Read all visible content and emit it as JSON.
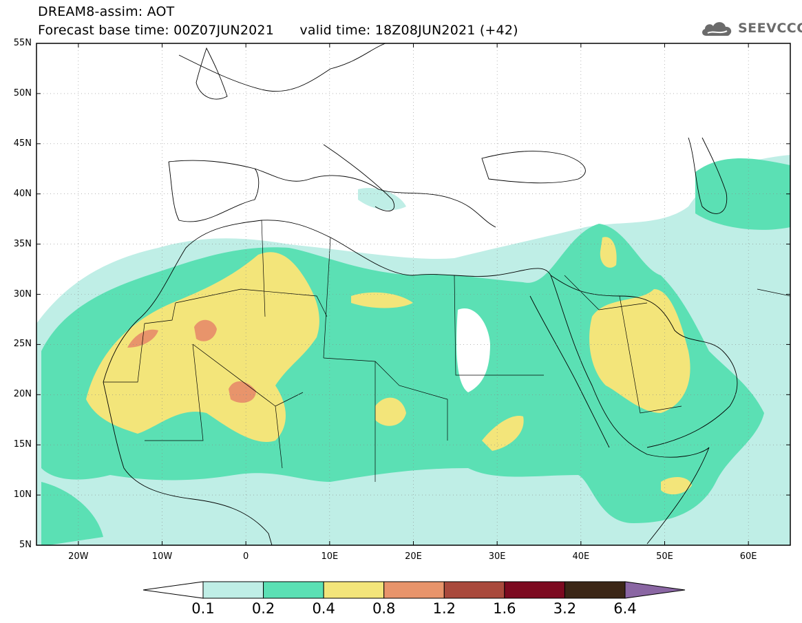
{
  "header": {
    "title_line1": "DREAM8-assim: AOT",
    "title_line2": "Forecast base time: 00Z07JUN2021      valid time: 18Z08JUN2021 (+42)",
    "logo_text": "SEEVCCC",
    "logo_icon": "cloud-icon"
  },
  "map": {
    "lat_labels": [
      "55N",
      "50N",
      "45N",
      "40N",
      "35N",
      "30N",
      "25N",
      "20N",
      "15N",
      "10N",
      "5N"
    ],
    "lon_labels": [
      "20W",
      "10W",
      "0",
      "10E",
      "20E",
      "30E",
      "40E",
      "50E",
      "60E"
    ],
    "lat_range": [
      5,
      55
    ],
    "lon_range": [
      -25,
      65
    ],
    "gridlines": true,
    "colors": {
      "0.1-0.2": "#bfeee6",
      "0.2-0.4": "#5be0b4",
      "0.4-0.8": "#f3e57a",
      "0.8-1.2": "#e8946b",
      "1.2-1.6": "#a9493c",
      "1.6-3.2": "#7c0a20",
      "3.2-6.4": "#3b2616",
      ">6.4": "#8a66a3"
    }
  },
  "colorbar": {
    "labels": [
      "0.1",
      "0.2",
      "0.4",
      "0.8",
      "1.2",
      "1.6",
      "3.2",
      "6.4"
    ],
    "bins": [
      "#bfeee6",
      "#5be0b4",
      "#f3e57a",
      "#e8946b",
      "#a9493c",
      "#7c0a20",
      "#3b2616"
    ],
    "under_color": "#ffffff",
    "over_color": "#8a66a3"
  }
}
